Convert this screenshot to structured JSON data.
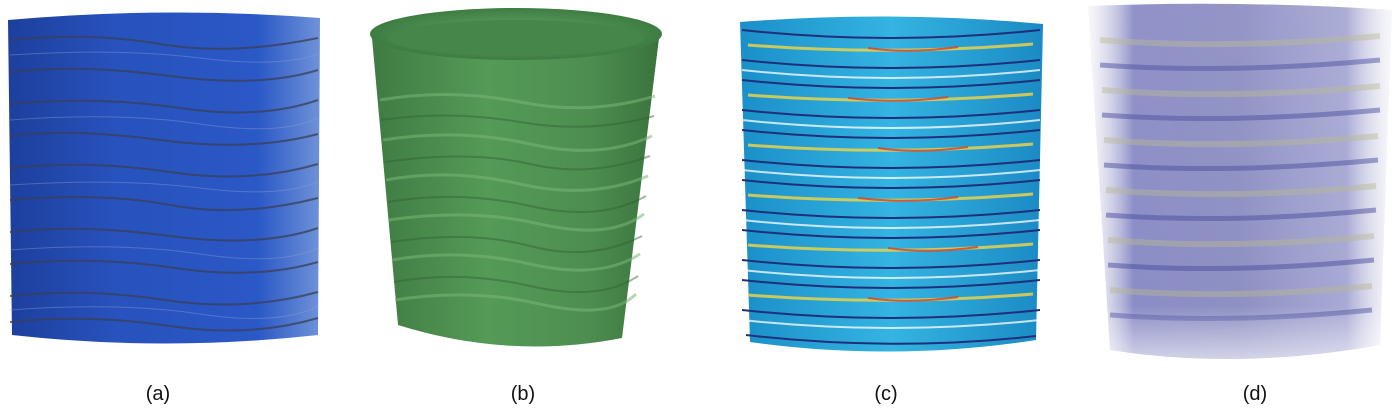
{
  "figure": {
    "panels": [
      {
        "caption": "(a)",
        "color": "#2a4fb5"
      },
      {
        "caption": "(b)",
        "color": "#4c8a4e"
      },
      {
        "caption": "(c)",
        "color": "#1fa9d9"
      },
      {
        "caption": "(d)",
        "color": "#7b7ec4"
      }
    ]
  }
}
